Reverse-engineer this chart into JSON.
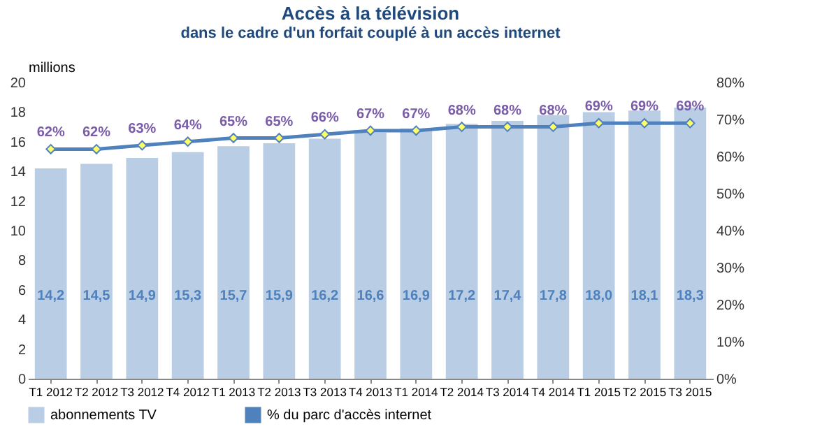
{
  "chart_data": {
    "type": "bar",
    "title": "Accès à la télévision",
    "subtitle": "dans le cadre d'un forfait couplé à un accès internet",
    "ylabel": "millions",
    "categories": [
      "T1 2012",
      "T2 2012",
      "T3 2012",
      "T4 2012",
      "T1 2013",
      "T2 2013",
      "T3 2013",
      "T4 2013",
      "T1 2014",
      "T2 2014",
      "T3 2014",
      "T4 2014",
      "T1 2015",
      "T2 2015",
      "T3 2015"
    ],
    "series": [
      {
        "name": "abonnements TV",
        "color": "#b9cde5",
        "values": [
          14.2,
          14.5,
          14.9,
          15.3,
          15.7,
          15.9,
          16.2,
          16.6,
          16.9,
          17.2,
          17.4,
          17.8,
          18.0,
          18.1,
          18.3
        ],
        "value_labels": [
          "14,2",
          "14,5",
          "14,9",
          "15,3",
          "15,7",
          "15,9",
          "16,2",
          "16,6",
          "16,9",
          "17,2",
          "17,4",
          "17,8",
          "18,0",
          "18,1",
          "18,3"
        ]
      },
      {
        "name": "% du parc d'accès internet",
        "type": "line",
        "axis": "y2",
        "color": "#4f81bd",
        "marker": "diamond",
        "values": [
          62,
          62,
          63,
          64,
          65,
          65,
          66,
          67,
          67,
          68,
          68,
          68,
          69,
          69,
          69
        ],
        "value_labels": [
          "62%",
          "62%",
          "63%",
          "64%",
          "65%",
          "65%",
          "66%",
          "67%",
          "67%",
          "68%",
          "68%",
          "68%",
          "69%",
          "69%",
          "69%"
        ]
      }
    ],
    "ylim": [
      0,
      20
    ],
    "yticks": [
      0,
      2,
      4,
      6,
      8,
      10,
      12,
      14,
      16,
      18,
      20
    ],
    "y2lim": [
      0,
      80
    ],
    "y2ticks": [
      {
        "value": 0,
        "label": "0%"
      },
      {
        "value": 10,
        "label": "10%"
      },
      {
        "value": 20,
        "label": "20%"
      },
      {
        "value": 30,
        "label": "30%"
      },
      {
        "value": 40,
        "label": "40%"
      },
      {
        "value": 50,
        "label": "50%"
      },
      {
        "value": 60,
        "label": "60%"
      },
      {
        "value": 70,
        "label": "70%"
      },
      {
        "value": 80,
        "label": "80%"
      }
    ],
    "legend": "bottom"
  }
}
